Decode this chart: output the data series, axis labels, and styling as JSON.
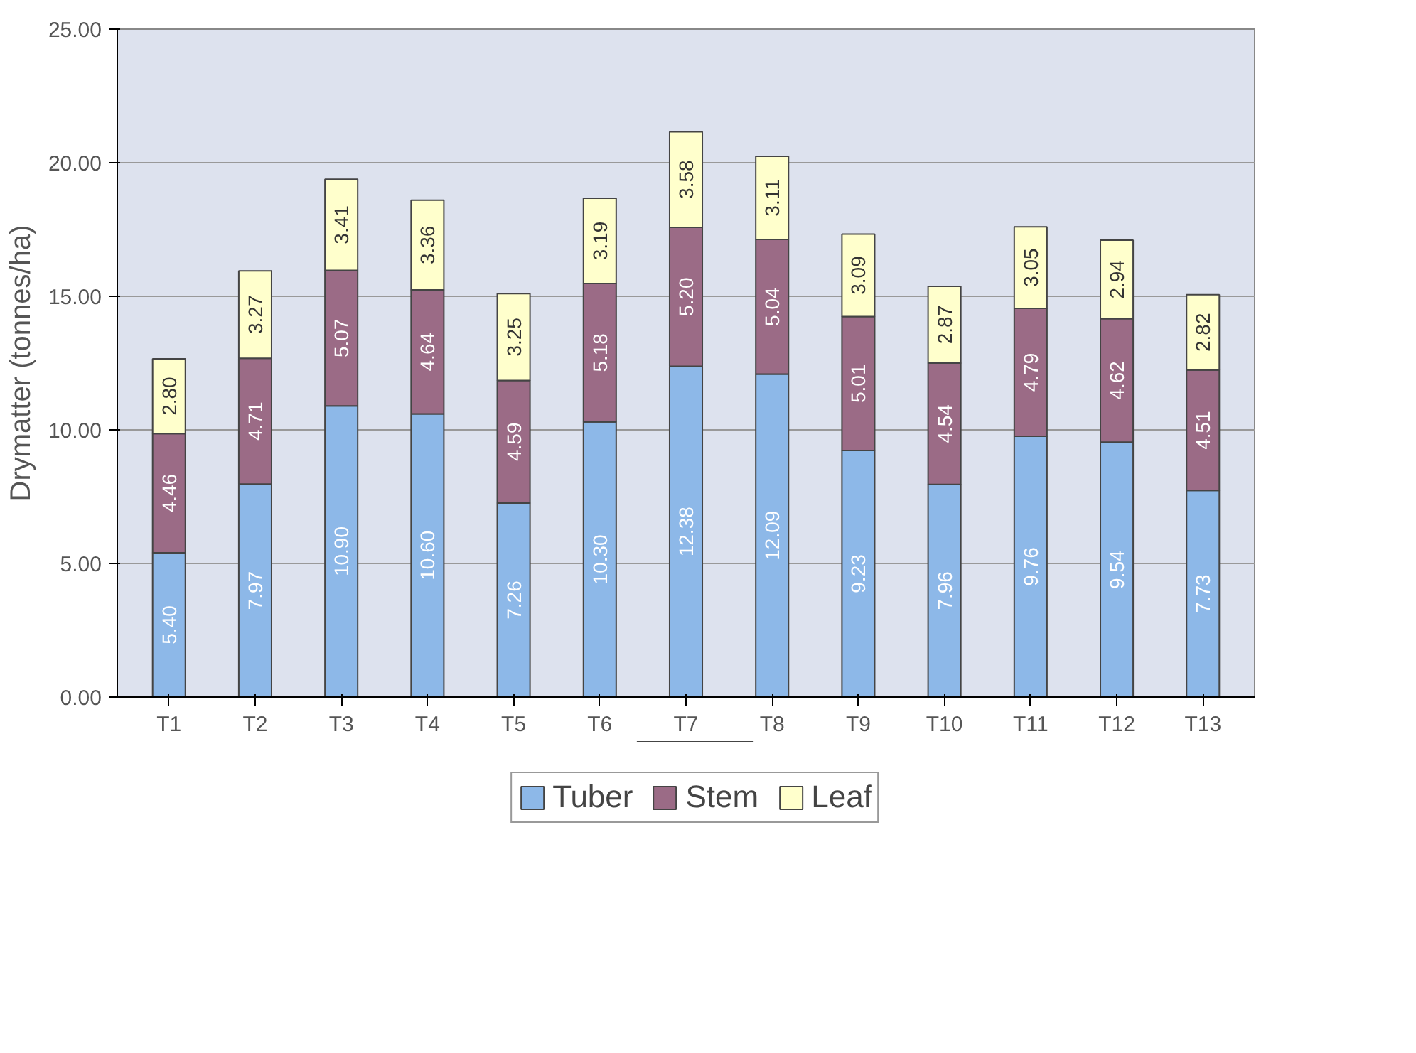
{
  "chart_data": {
    "type": "bar",
    "stacked": true,
    "ylabel": "Drymatter (tonnes/ha)",
    "categories": [
      "T1",
      "T2",
      "T3",
      "T4",
      "T5",
      "T6",
      "T7",
      "T8",
      "T9",
      "T10",
      "T11",
      "T12",
      "T13"
    ],
    "series": [
      {
        "name": "Tuber",
        "color": "#8db8e8",
        "values": [
          5.4,
          7.97,
          10.9,
          10.6,
          7.26,
          10.3,
          12.38,
          12.09,
          9.23,
          7.96,
          9.76,
          9.54,
          7.73
        ],
        "value_labels": [
          "5.40",
          "7.97",
          "10.90",
          "10.60",
          "7.26",
          "10.30",
          "12.38",
          "12.09",
          "9.23",
          "7.96",
          "9.76",
          "9.54",
          "7.73"
        ]
      },
      {
        "name": "Stem",
        "color": "#9b6b86",
        "values": [
          4.46,
          4.71,
          5.07,
          4.64,
          4.59,
          5.18,
          5.2,
          5.04,
          5.01,
          4.54,
          4.79,
          4.62,
          4.51
        ],
        "value_labels": [
          "4.46",
          "4.71",
          "5.07",
          "4.64",
          "4.59",
          "5.18",
          "5.20",
          "5.04",
          "5.01",
          "4.54",
          "4.79",
          "4.62",
          "4.51"
        ]
      },
      {
        "name": "Leaf",
        "color": "#ffffcc",
        "values": [
          2.8,
          3.27,
          3.41,
          3.36,
          3.25,
          3.19,
          3.58,
          3.11,
          3.09,
          2.87,
          3.05,
          2.94,
          2.82
        ],
        "value_labels": [
          "2.80",
          "3.27",
          "3.41",
          "3.36",
          "3.25",
          "3.19",
          "3.58",
          "3.11",
          "3.09",
          "2.87",
          "3.05",
          "2.94",
          "2.82"
        ]
      }
    ],
    "ylim": [
      0,
      25
    ],
    "yticks": [
      {
        "value": 0,
        "label": "0.00"
      },
      {
        "value": 5,
        "label": "5.00"
      },
      {
        "value": 10,
        "label": "10.00"
      },
      {
        "value": 15,
        "label": "15.00"
      },
      {
        "value": 20,
        "label": "20.00"
      },
      {
        "value": 25,
        "label": "25.00"
      }
    ],
    "grid": "y",
    "legend": "bottom"
  }
}
